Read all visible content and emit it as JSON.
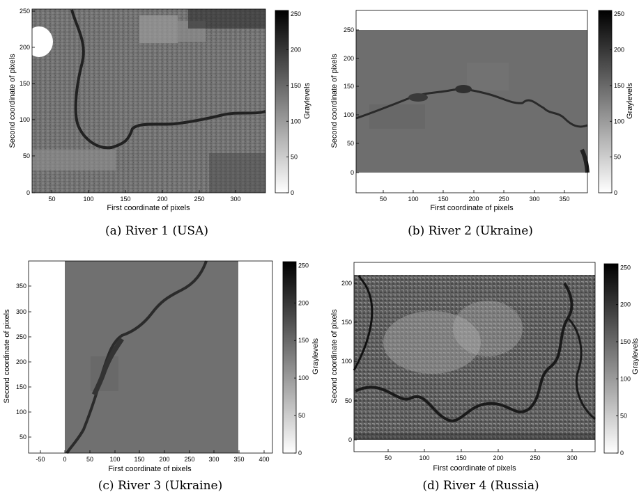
{
  "panels": [
    {
      "caption": "(a) River 1 (USA)",
      "xlabel": "First coordinate of pixels",
      "ylabel": "Second coordinate of pixels",
      "colorbar_label": "Graylevels",
      "xticks": [
        "50",
        "100",
        "150",
        "200",
        "250",
        "300"
      ],
      "yticks": [
        "0",
        "50",
        "100",
        "150",
        "200",
        "250"
      ],
      "cbticks": [
        "0",
        "50",
        "100",
        "150",
        "200",
        "250"
      ]
    },
    {
      "caption": "(b) River 2 (Ukraine)",
      "xlabel": "First coordinate of pixels",
      "ylabel": "Second coordinate of pixels",
      "colorbar_label": "Graylevels",
      "xticks": [
        "50",
        "100",
        "150",
        "200",
        "250",
        "300",
        "350"
      ],
      "yticks": [
        "0",
        "50",
        "100",
        "150",
        "200",
        "250"
      ],
      "cbticks": [
        "0",
        "50",
        "100",
        "150",
        "200",
        "250"
      ]
    },
    {
      "caption": "(c) River 3 (Ukraine)",
      "xlabel": "First coordinate of pixels",
      "ylabel": "Second coordinate of pixels",
      "colorbar_label": "Graylevels",
      "xticks": [
        "-50",
        "0",
        "50",
        "100",
        "150",
        "200",
        "250",
        "300",
        "350",
        "400"
      ],
      "yticks": [
        "50",
        "100",
        "150",
        "200",
        "250",
        "300",
        "350"
      ],
      "cbticks": [
        "0",
        "50",
        "100",
        "150",
        "200",
        "250"
      ]
    },
    {
      "caption": "(d) River 4 (Russia)",
      "xlabel": "First coordinate of pixels",
      "ylabel": "Second coordinate of pixels",
      "colorbar_label": "Graylevels",
      "xticks": [
        "50",
        "100",
        "150",
        "200",
        "250",
        "300"
      ],
      "yticks": [
        "0",
        "50",
        "100",
        "150",
        "200"
      ],
      "cbticks": [
        "0",
        "50",
        "100",
        "150",
        "200",
        "250"
      ]
    }
  ]
}
